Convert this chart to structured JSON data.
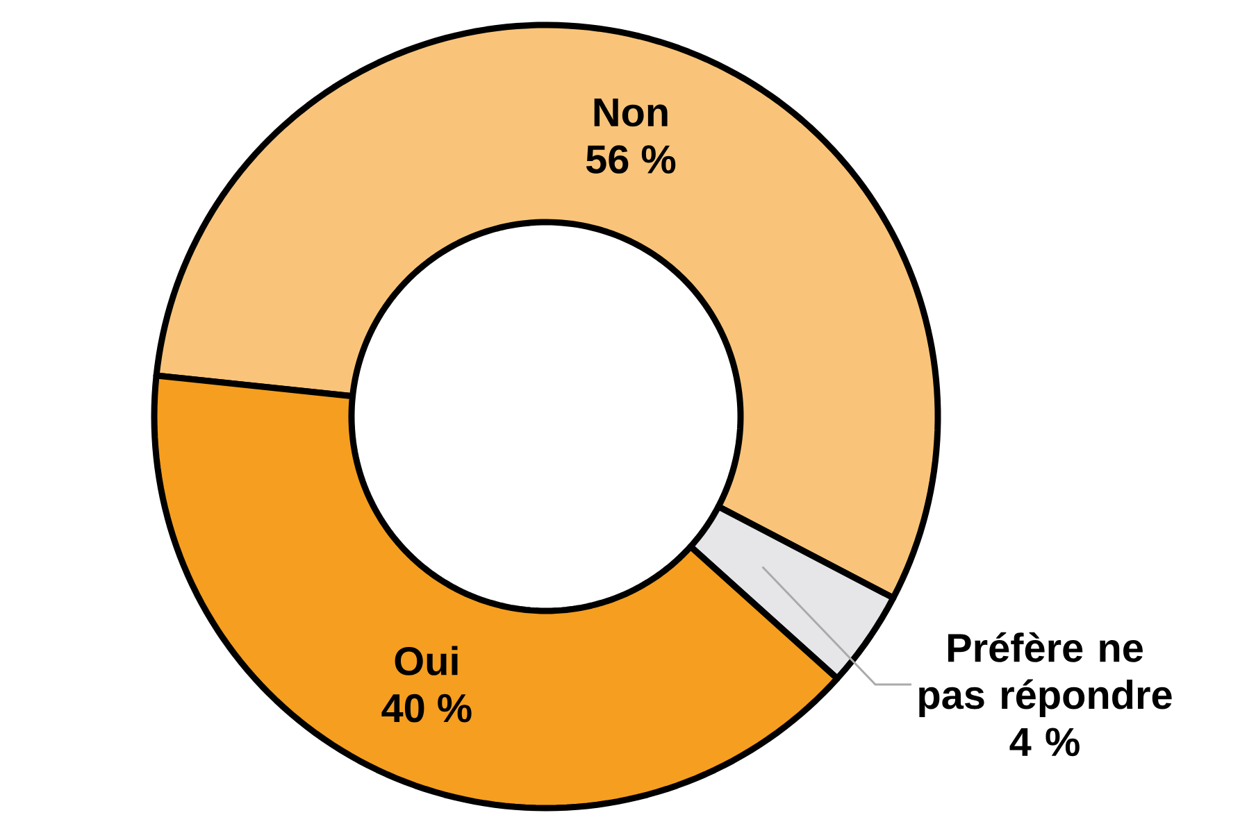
{
  "chart_data": {
    "type": "donut",
    "categories": [
      "Non",
      "Préfère ne pas répondre",
      "Oui"
    ],
    "values": [
      56,
      4,
      40
    ],
    "value_labels": [
      "56 %",
      "4 %",
      "40 %"
    ],
    "colors": [
      "#f9c479",
      "#e6e5e7",
      "#f59e1f"
    ]
  }
}
